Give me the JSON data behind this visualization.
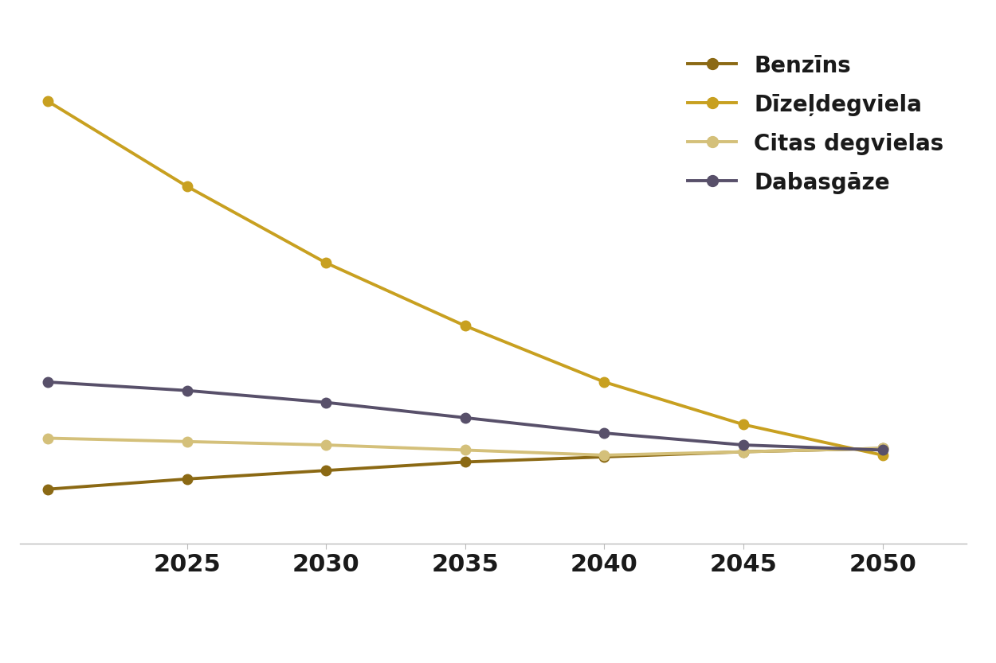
{
  "x": [
    2020,
    2025,
    2030,
    2035,
    2040,
    2045,
    2050
  ],
  "series": [
    {
      "label": "Benzīns",
      "color": "#8B6914",
      "values": [
        3.2,
        3.8,
        4.3,
        4.8,
        5.1,
        5.4,
        5.6
      ]
    },
    {
      "label": "Dīzeļdegviela",
      "color": "#C8A020",
      "values": [
        26.0,
        21.0,
        16.5,
        12.8,
        9.5,
        7.0,
        5.2
      ]
    },
    {
      "label": "Citas degvielas",
      "color": "#D4C07A",
      "values": [
        6.2,
        6.0,
        5.8,
        5.5,
        5.2,
        5.4,
        5.6
      ]
    },
    {
      "label": "Dabasgāze",
      "color": "#58506A",
      "values": [
        9.5,
        9.0,
        8.3,
        7.4,
        6.5,
        5.8,
        5.5
      ]
    }
  ],
  "xlim": [
    2019,
    2053
  ],
  "ylim": [
    0,
    30
  ],
  "xticks": [
    2025,
    2030,
    2035,
    2040,
    2045,
    2050
  ],
  "background_color": "#FFFFFF",
  "legend_fontsize": 20,
  "tick_fontsize": 22,
  "linewidth": 2.8,
  "markersize": 9
}
